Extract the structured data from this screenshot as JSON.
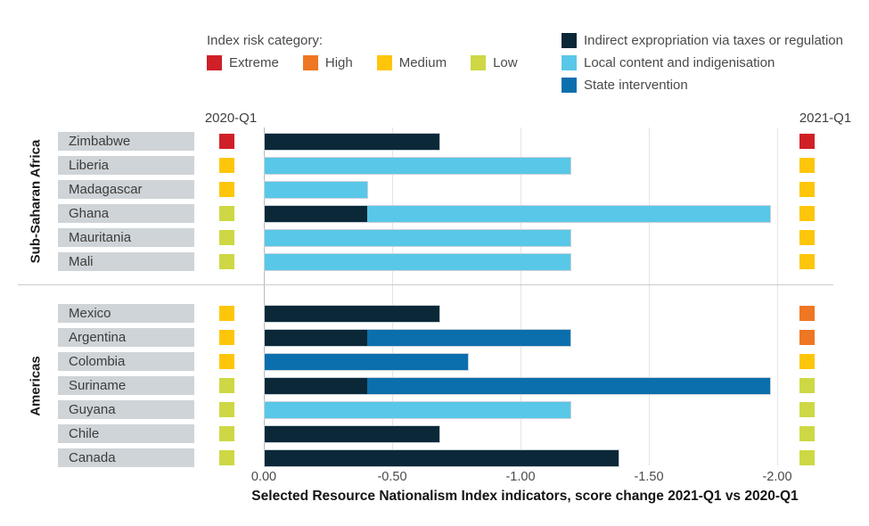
{
  "risk_legend": {
    "title": "Index risk category:",
    "items": [
      {
        "label": "Extreme",
        "color": "#d02027"
      },
      {
        "label": "High",
        "color": "#ef7622"
      },
      {
        "label": "Medium",
        "color": "#fec60a"
      },
      {
        "label": "Low",
        "color": "#cdd844"
      }
    ]
  },
  "series_legend": {
    "items": [
      {
        "id": "indirect",
        "label": "Indirect expropriation via taxes or regulation",
        "color": "#0b2838"
      },
      {
        "id": "local",
        "label": "Local content and indigenisation",
        "color": "#59c7e8"
      },
      {
        "id": "state",
        "label": "State intervention",
        "color": "#0c6fad"
      }
    ]
  },
  "column_headers": {
    "left": "2020-Q1",
    "right": "2021-Q1"
  },
  "risk_colors": {
    "Extreme": "#d02027",
    "High": "#ef7622",
    "Medium": "#fec60a",
    "Low": "#cdd844"
  },
  "chart_data": {
    "type": "bar",
    "orientation": "horizontal",
    "title": "Selected Resource Nationalism Index indicators, score change 2021-Q1 vs 2020-Q1",
    "xlabel": "score change 2021-Q1 vs 2020-Q1",
    "xlim": [
      0,
      -2.0
    ],
    "grid": "vertical",
    "legend_position": "top-right",
    "tick_labels": [
      "0.00",
      "-0.50",
      "-1.00",
      "-1.50",
      "-2.00"
    ],
    "tick_values": [
      0,
      -0.5,
      -1.0,
      -1.5,
      -2.0
    ],
    "series_names": [
      "Indirect expropriation via taxes or regulation",
      "Local content and indigenisation",
      "State intervention"
    ],
    "groups": [
      {
        "name": "Sub-Saharan Africa",
        "rows": [
          {
            "country": "Zimbabwe",
            "risk_2020": "Extreme",
            "risk_2021": "Extreme",
            "segments": [
              {
                "series": "indirect",
                "value": -0.68
              }
            ]
          },
          {
            "country": "Liberia",
            "risk_2020": "Medium",
            "risk_2021": "Medium",
            "segments": [
              {
                "series": "local",
                "value": -1.19
              }
            ]
          },
          {
            "country": "Madagascar",
            "risk_2020": "Medium",
            "risk_2021": "Medium",
            "segments": [
              {
                "series": "local",
                "value": -0.4
              }
            ]
          },
          {
            "country": "Ghana",
            "risk_2020": "Low",
            "risk_2021": "Medium",
            "segments": [
              {
                "series": "indirect",
                "value": -0.4
              },
              {
                "series": "local",
                "value": -1.57
              }
            ]
          },
          {
            "country": "Mauritania",
            "risk_2020": "Low",
            "risk_2021": "Medium",
            "segments": [
              {
                "series": "local",
                "value": -1.19
              }
            ]
          },
          {
            "country": "Mali",
            "risk_2020": "Low",
            "risk_2021": "Medium",
            "segments": [
              {
                "series": "local",
                "value": -1.19
              }
            ]
          }
        ]
      },
      {
        "name": "Americas",
        "rows": [
          {
            "country": "Mexico",
            "risk_2020": "Medium",
            "risk_2021": "High",
            "segments": [
              {
                "series": "indirect",
                "value": -0.68
              }
            ]
          },
          {
            "country": "Argentina",
            "risk_2020": "Medium",
            "risk_2021": "High",
            "segments": [
              {
                "series": "indirect",
                "value": -0.4
              },
              {
                "series": "state",
                "value": -0.79
              }
            ]
          },
          {
            "country": "Colombia",
            "risk_2020": "Medium",
            "risk_2021": "Medium",
            "segments": [
              {
                "series": "state",
                "value": -0.79
              }
            ]
          },
          {
            "country": "Suriname",
            "risk_2020": "Low",
            "risk_2021": "Low",
            "segments": [
              {
                "series": "indirect",
                "value": -0.4
              },
              {
                "series": "state",
                "value": -1.57
              }
            ]
          },
          {
            "country": "Guyana",
            "risk_2020": "Low",
            "risk_2021": "Low",
            "segments": [
              {
                "series": "local",
                "value": -1.19
              }
            ]
          },
          {
            "country": "Chile",
            "risk_2020": "Low",
            "risk_2021": "Low",
            "segments": [
              {
                "series": "indirect",
                "value": -0.68
              }
            ]
          },
          {
            "country": "Canada",
            "risk_2020": "Low",
            "risk_2021": "Low",
            "segments": [
              {
                "series": "indirect",
                "value": -1.38
              }
            ]
          }
        ]
      }
    ]
  }
}
